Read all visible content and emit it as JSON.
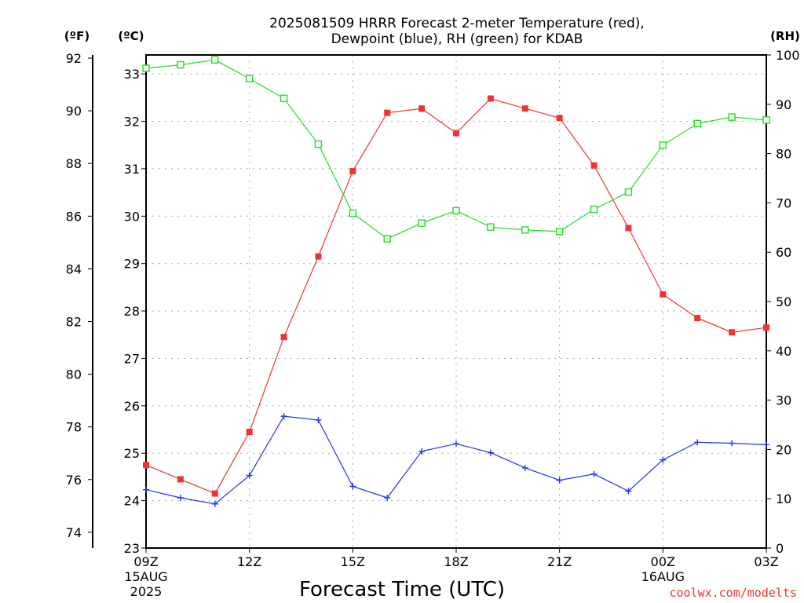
{
  "chart_data": {
    "type": "line",
    "title_line1": "2025081509 HRRR Forecast 2-meter Temperature (red),",
    "title_line2": "Dewpoint (blue), RH (green) for KDAB",
    "xlabel": "Forecast Time (UTC)",
    "credit": "coolwx.com/modelts",
    "unit_f": "(ºF)",
    "unit_c": "(ºC)",
    "unit_rh": "(RH)",
    "x_hours": [
      0,
      1,
      2,
      3,
      4,
      5,
      6,
      7,
      8,
      9,
      10,
      11,
      12,
      13,
      14,
      15,
      16,
      17,
      18
    ],
    "x_ticks": [
      {
        "hour": 0,
        "label": "09Z",
        "sub1": "15AUG",
        "sub2": "2025"
      },
      {
        "hour": 3,
        "label": "12Z",
        "sub1": "",
        "sub2": ""
      },
      {
        "hour": 6,
        "label": "15Z",
        "sub1": "",
        "sub2": ""
      },
      {
        "hour": 9,
        "label": "18Z",
        "sub1": "",
        "sub2": ""
      },
      {
        "hour": 12,
        "label": "21Z",
        "sub1": "",
        "sub2": ""
      },
      {
        "hour": 15,
        "label": "00Z",
        "sub1": "16AUG",
        "sub2": ""
      },
      {
        "hour": 18,
        "label": "03Z",
        "sub1": "",
        "sub2": ""
      }
    ],
    "y_celsius": {
      "range": [
        23,
        33.4
      ],
      "ticks": [
        23,
        24,
        25,
        26,
        27,
        28,
        29,
        30,
        31,
        32,
        33
      ]
    },
    "y_fahrenheit": {
      "ticks": [
        74,
        76,
        78,
        80,
        82,
        84,
        86,
        88,
        90,
        92
      ]
    },
    "y_rh": {
      "range": [
        0,
        100
      ],
      "ticks": [
        0,
        10,
        20,
        30,
        40,
        50,
        60,
        70,
        80,
        90,
        100
      ]
    },
    "series": [
      {
        "name": "Temperature",
        "color": "#ee3333",
        "marker": "filled-square",
        "axis": "celsius",
        "values": [
          24.75,
          24.45,
          24.15,
          25.45,
          27.45,
          29.15,
          30.95,
          32.18,
          32.27,
          31.75,
          32.48,
          32.27,
          32.07,
          31.07,
          29.75,
          28.35,
          27.85,
          27.55,
          27.65
        ]
      },
      {
        "name": "Dewpoint",
        "color": "#2233ee",
        "marker": "plus",
        "axis": "celsius",
        "values": [
          24.23,
          24.06,
          23.93,
          24.53,
          25.78,
          25.7,
          24.3,
          24.06,
          25.04,
          25.2,
          25.01,
          24.69,
          24.43,
          24.56,
          24.2,
          24.86,
          25.23,
          25.21,
          25.18
        ]
      },
      {
        "name": "RH",
        "color": "#22dd22",
        "marker": "open-square",
        "axis": "rh",
        "values": [
          97.3,
          98.0,
          99.0,
          95.2,
          91.2,
          81.9,
          67.9,
          62.7,
          65.9,
          68.4,
          65.1,
          64.5,
          64.2,
          68.7,
          72.2,
          81.7,
          86.1,
          87.4,
          86.8
        ]
      }
    ]
  }
}
